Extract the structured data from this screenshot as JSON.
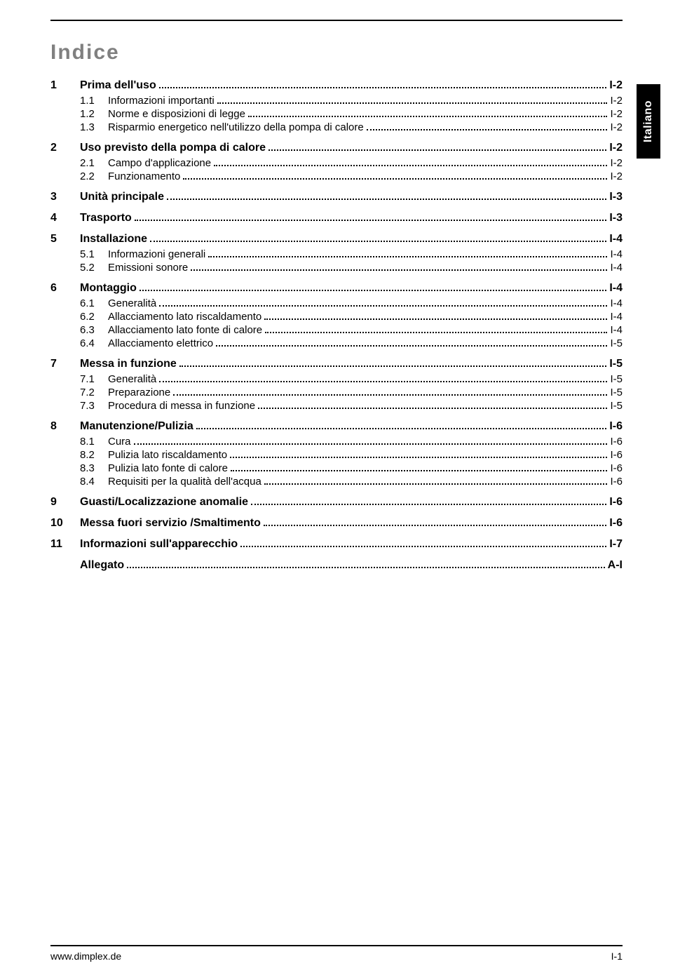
{
  "title": "Indice",
  "side_tab": "Italiano",
  "footer_left": "www.dimplex.de",
  "footer_right": "I-1",
  "toc": [
    {
      "level": 1,
      "num": "1",
      "label": "Prima dell'uso",
      "page": "I-2"
    },
    {
      "level": 2,
      "num": "1.1",
      "label": "Informazioni importanti",
      "page": "I-2"
    },
    {
      "level": 2,
      "num": "1.2",
      "label": "Norme e disposizioni di legge",
      "page": "I-2"
    },
    {
      "level": 2,
      "num": "1.3",
      "label": "Risparmio energetico nell'utilizzo della pompa di calore",
      "page": "I-2"
    },
    {
      "level": 1,
      "num": "2",
      "label": "Uso previsto della pompa di calore",
      "page": "I-2"
    },
    {
      "level": 2,
      "num": "2.1",
      "label": "Campo d'applicazione",
      "page": "I-2"
    },
    {
      "level": 2,
      "num": "2.2",
      "label": "Funzionamento",
      "page": "I-2"
    },
    {
      "level": 1,
      "num": "3",
      "label": "Unità principale",
      "page": "I-3"
    },
    {
      "level": 1,
      "num": "4",
      "label": "Trasporto",
      "page": "I-3"
    },
    {
      "level": 1,
      "num": "5",
      "label": "Installazione",
      "page": "I-4"
    },
    {
      "level": 2,
      "num": "5.1",
      "label": "Informazioni generali",
      "page": "I-4"
    },
    {
      "level": 2,
      "num": "5.2",
      "label": "Emissioni sonore",
      "page": "I-4"
    },
    {
      "level": 1,
      "num": "6",
      "label": "Montaggio",
      "page": "I-4"
    },
    {
      "level": 2,
      "num": "6.1",
      "label": "Generalità",
      "page": "I-4"
    },
    {
      "level": 2,
      "num": "6.2",
      "label": "Allacciamento lato riscaldamento",
      "page": "I-4"
    },
    {
      "level": 2,
      "num": "6.3",
      "label": "Allacciamento lato fonte di calore",
      "page": "I-4"
    },
    {
      "level": 2,
      "num": "6.4",
      "label": "Allacciamento elettrico",
      "page": "I-5"
    },
    {
      "level": 1,
      "num": "7",
      "label": "Messa in funzione",
      "page": "I-5"
    },
    {
      "level": 2,
      "num": "7.1",
      "label": "Generalità",
      "page": "I-5"
    },
    {
      "level": 2,
      "num": "7.2",
      "label": "Preparazione",
      "page": "I-5"
    },
    {
      "level": 2,
      "num": "7.3",
      "label": "Procedura di messa in funzione",
      "page": "I-5"
    },
    {
      "level": 1,
      "num": "8",
      "label": "Manutenzione/Pulizia",
      "page": "I-6"
    },
    {
      "level": 2,
      "num": "8.1",
      "label": "Cura",
      "page": "I-6"
    },
    {
      "level": 2,
      "num": "8.2",
      "label": "Pulizia lato riscaldamento",
      "page": "I-6"
    },
    {
      "level": 2,
      "num": "8.3",
      "label": "Pulizia lato fonte di calore",
      "page": "I-6"
    },
    {
      "level": 2,
      "num": "8.4",
      "label": "Requisiti per la qualità dell'acqua",
      "page": "I-6"
    },
    {
      "level": 1,
      "num": "9",
      "label": "Guasti/Localizzazione anomalie",
      "page": "I-6"
    },
    {
      "level": 1,
      "num": "10",
      "label": "Messa fuori servizio /Smaltimento",
      "page": "I-6"
    },
    {
      "level": 1,
      "num": "11",
      "label": "Informazioni sull'apparecchio",
      "page": "I-7"
    },
    {
      "level": 1,
      "num": "",
      "label": "Allegato",
      "page": "A-I"
    }
  ]
}
